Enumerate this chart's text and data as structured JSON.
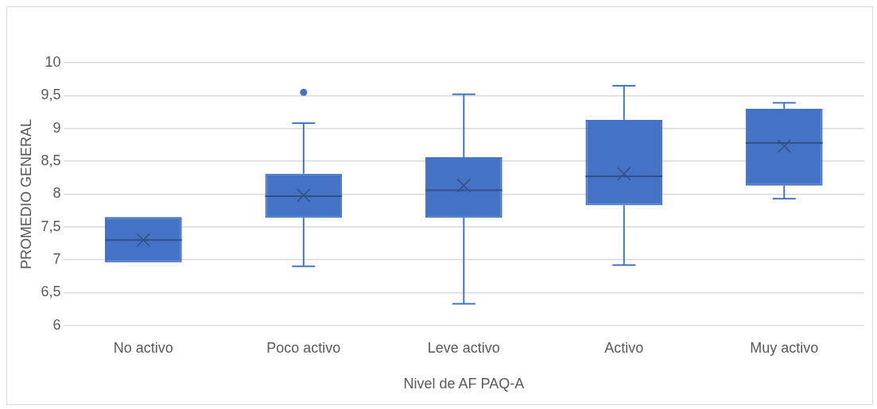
{
  "chart_data": {
    "type": "box",
    "categories": [
      "No activo",
      "Poco activo",
      "Leve activo",
      "Activo",
      "Muy activo"
    ],
    "xlabel": "Nivel de AF PAQ-A",
    "ylabel": "PROMEDIO GENERAL",
    "color": "#4472c4",
    "boxes": [
      {
        "low": 6.96,
        "q1": 6.96,
        "median": 7.3,
        "q3": 7.65,
        "high": 7.65,
        "mean": 7.3
      },
      {
        "low": 6.9,
        "q1": 7.64,
        "median": 7.97,
        "q3": 8.31,
        "high": 9.08,
        "mean": 7.98,
        "outliers": [
          9.55
        ]
      },
      {
        "low": 6.33,
        "q1": 7.64,
        "median": 8.06,
        "q3": 8.56,
        "high": 9.52,
        "mean": 8.13
      },
      {
        "low": 6.92,
        "q1": 7.83,
        "median": 8.27,
        "q3": 9.13,
        "high": 9.65,
        "mean": 8.31
      },
      {
        "low": 7.93,
        "q1": 8.13,
        "median": 8.78,
        "q3": 9.3,
        "high": 9.39,
        "mean": 8.73
      }
    ],
    "ylim": [
      6,
      10
    ],
    "yticks": [
      6,
      {
        "value": 6.5,
        "label": "6,5"
      },
      7,
      {
        "value": 7.5,
        "label": "7,5"
      },
      8,
      {
        "value": 8.5,
        "label": "8,5"
      },
      9,
      {
        "value": 9.5,
        "label": "9,5"
      },
      10
    ],
    "grid": "y",
    "legend": false,
    "marker": "cross"
  }
}
